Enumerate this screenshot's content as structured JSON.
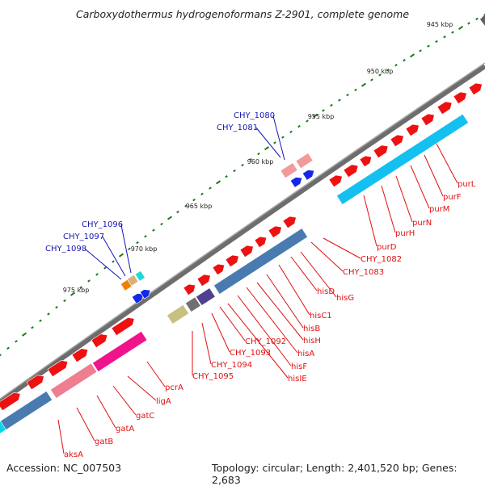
{
  "title": "Carboxydothermus hydrogenoformans Z-2901, complete genome",
  "scale_labels": [
    "945 kbp",
    "950 kbp",
    "955 kbp",
    "960 kbp",
    "965 kbp",
    "970 kbp",
    "975 kbp"
  ],
  "labels_red": [
    "purL",
    "purF",
    "purM",
    "purN",
    "purH",
    "purD",
    "CHY_1082",
    "CHY_1083",
    "hisG",
    "hisD",
    "hisC1",
    "hisB",
    "hisH",
    "hisA",
    "hisF",
    "hisIE",
    "CHY_1092",
    "CHY_1093",
    "CHY_1094",
    "CHY_1095",
    "pcrA",
    "ligA",
    "gatC",
    "gatA",
    "gatB",
    "aksA"
  ],
  "labels_blue": [
    "CHY_1080",
    "CHY_1081",
    "CHY_1096",
    "CHY_1097",
    "CHY_1098"
  ],
  "footer": {
    "accession": "Accession: NC_007503",
    "stats": "Topology: circular; Length: 2,401,520 bp; Genes: 2,683"
  },
  "colors": {
    "backbone": "#6d6d6d",
    "forward_gene": "#ee1111",
    "cds_his": "#4a7bb0",
    "cds_pur": "#14c0f0",
    "cds_gatC": "#ee7f90",
    "cds_pcrA": "#f0148c",
    "label_red": "#e01010",
    "label_blue": "#1616b4",
    "scale_tick": "#1a7a1a"
  }
}
